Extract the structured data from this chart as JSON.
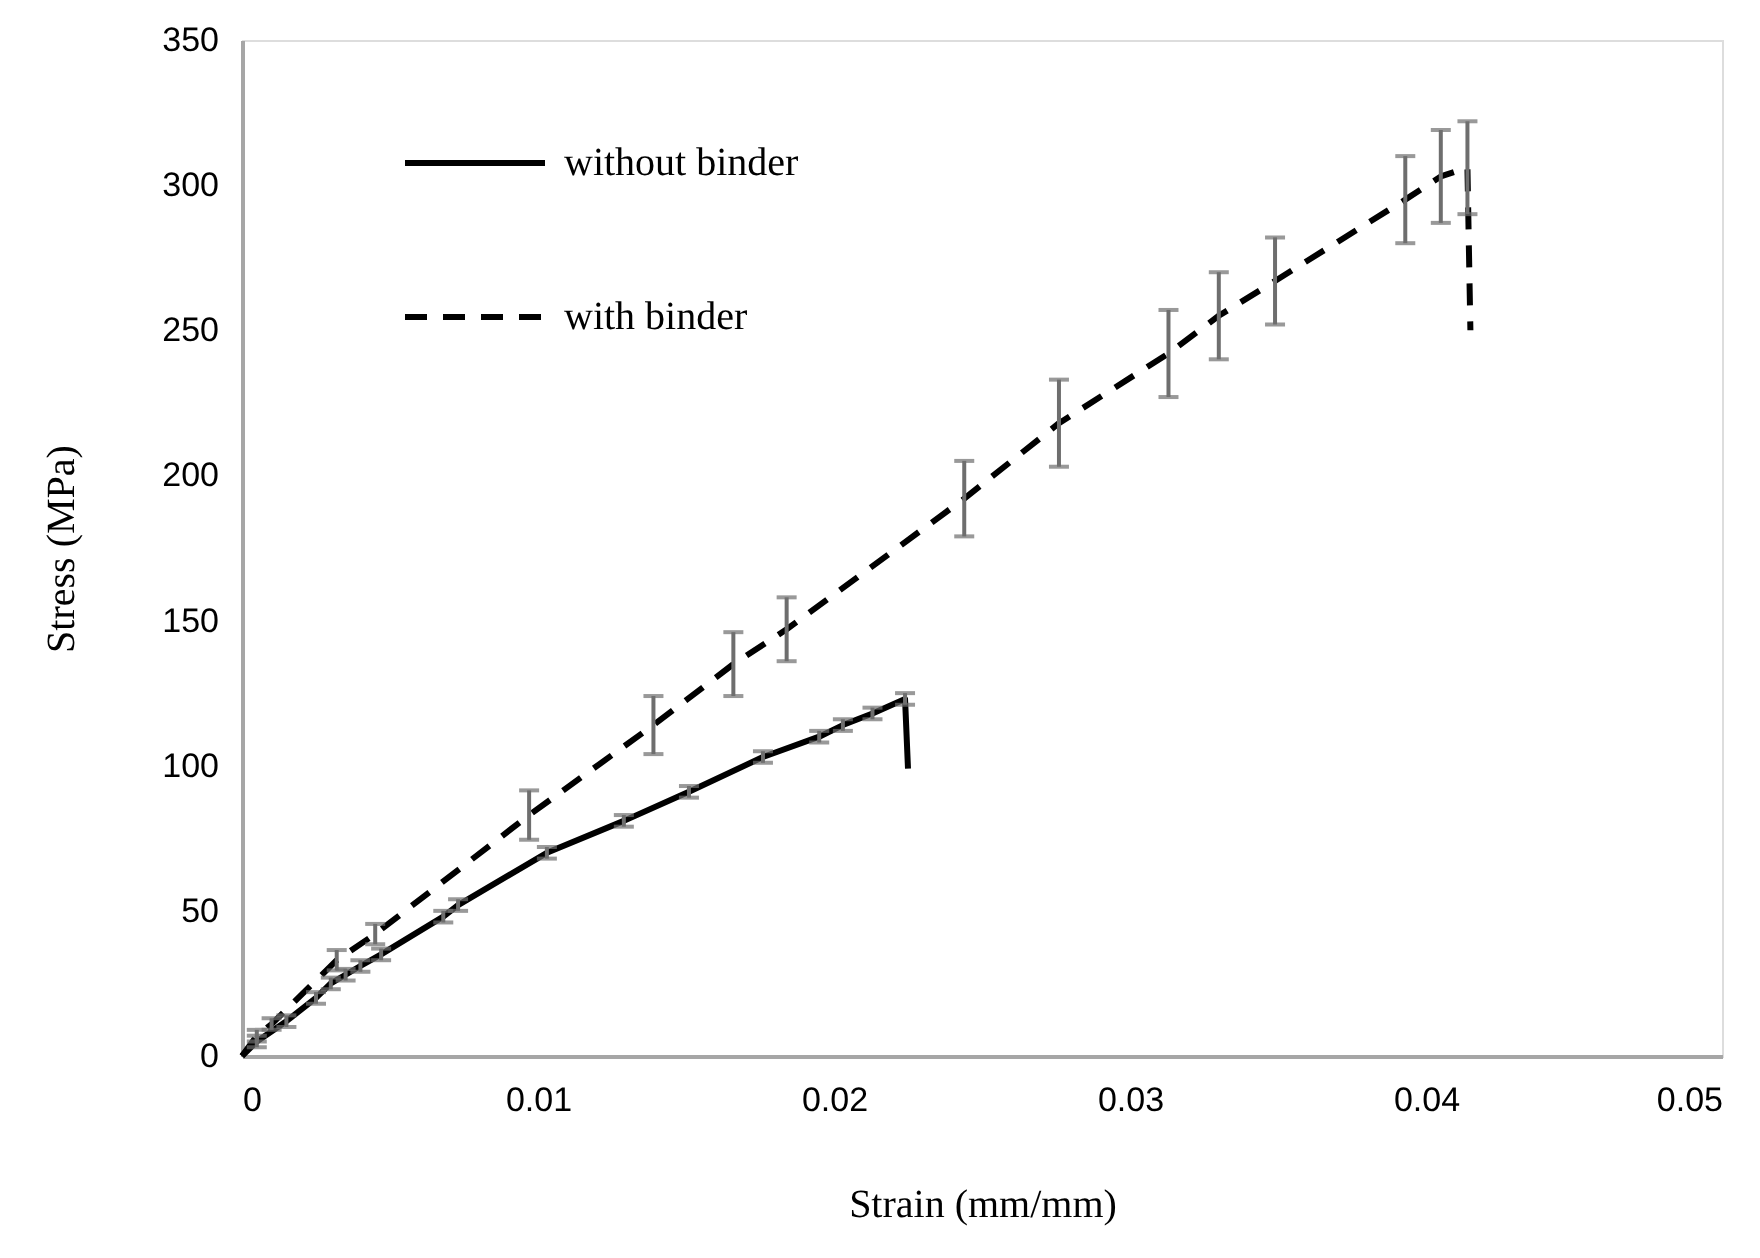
{
  "chart_data": {
    "type": "line",
    "xlabel": "Strain (mm/mm)",
    "ylabel": "Stress (MPa)",
    "xlim": [
      0,
      0.05
    ],
    "xticks": [
      0,
      0.01,
      0.02,
      0.03,
      0.04,
      0.05
    ],
    "ylim": [
      0,
      350
    ],
    "yticks": [
      0,
      50,
      100,
      150,
      200,
      250,
      300,
      350
    ],
    "grid": false,
    "legend": "top left",
    "marker": "none",
    "series": [
      {
        "name": "without binder",
        "color": "#000000",
        "line_style": "solid",
        "x": [
          0,
          0.0005,
          0.0015,
          0.0025,
          0.003,
          0.0035,
          0.004,
          0.0047,
          0.0068,
          0.0073,
          0.0103,
          0.0129,
          0.0151,
          0.0176,
          0.0195,
          0.0203,
          0.0213,
          0.0224,
          0.0225
        ],
        "values": [
          0,
          5,
          12,
          20,
          25,
          28,
          31,
          35,
          48,
          52,
          70,
          81,
          91,
          103,
          110,
          114,
          118,
          123,
          99
        ],
        "errors": [
          null,
          2,
          2,
          2,
          2,
          2,
          2,
          2,
          2,
          2,
          2,
          2,
          2,
          2,
          2,
          2,
          2,
          2,
          null
        ]
      },
      {
        "name": "with binder",
        "color": "#000000",
        "line_style": "dashed",
        "x": [
          0,
          0.0005,
          0.001,
          0.0032,
          0.0045,
          0.0097,
          0.0139,
          0.0166,
          0.0184,
          0.0244,
          0.0276,
          0.0313,
          0.033,
          0.0349,
          0.0393,
          0.0405,
          0.0414,
          0.0415
        ],
        "values": [
          0,
          7,
          11,
          33,
          42,
          83,
          114,
          135,
          147,
          192,
          218,
          242,
          255,
          267,
          295,
          303,
          306,
          250
        ],
        "errors": [
          null,
          2,
          2,
          3.5,
          3.5,
          8.5,
          10,
          11,
          11,
          13,
          15,
          15,
          15,
          15,
          15,
          16,
          16,
          null
        ]
      }
    ]
  }
}
